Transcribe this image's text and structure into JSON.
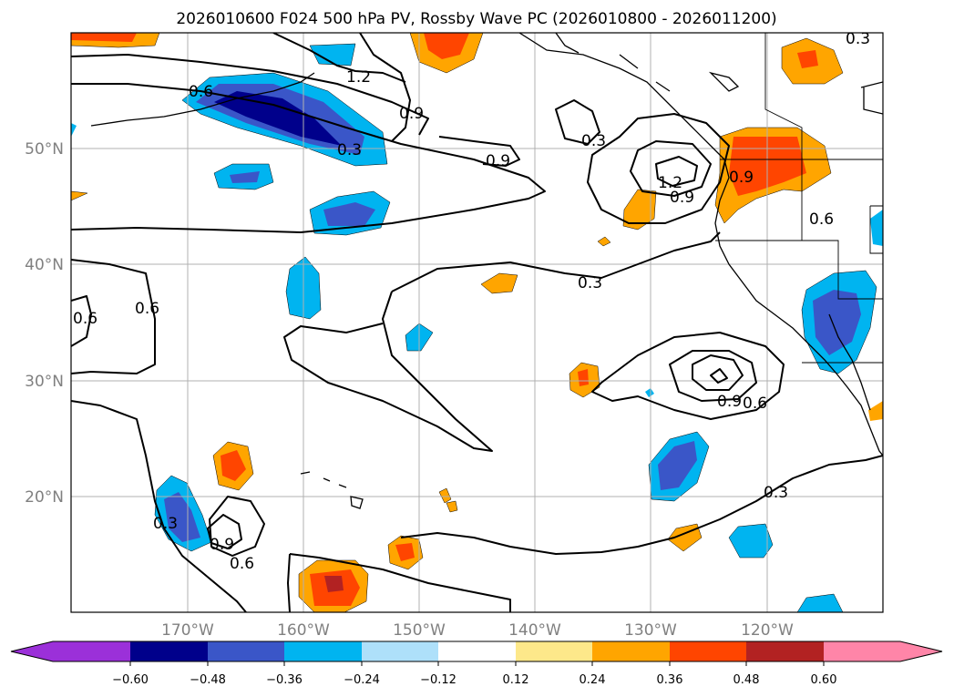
{
  "title": "2026010600 F024 500 hPa PV, Rossby Wave PC (2026010800 - 2026011200)",
  "colors": {
    "neg_060": "#9b30d9",
    "neg_048": "#00008b",
    "neg_036": "#3a56c8",
    "neg_024": "#00b4f0",
    "neg_012": "#aee0fa",
    "neutral": "#ffffff",
    "pos_012": "#fde88a",
    "pos_024": "#ffa500",
    "pos_036": "#ff4500",
    "pos_048": "#b22222",
    "pos_060": "#ff85a8"
  },
  "map": {
    "lon_labels": [
      "170°W",
      "160°W",
      "150°W",
      "140°W",
      "130°W",
      "120°W"
    ],
    "lat_labels": [
      "50°N",
      "40°N",
      "30°N",
      "20°N"
    ],
    "contour_labels": [
      "0.6",
      "0.3",
      "0.9",
      "1.2",
      "0.9",
      "0.3",
      "1.2",
      "0.9",
      "0.6",
      "0.6",
      "0.3",
      "0.3",
      "0.9",
      "0.6",
      "0.6",
      "0.9",
      "0.3",
      "0.6",
      "0.9",
      "0.3"
    ],
    "lon_range": [
      -180,
      -110
    ],
    "lat_range": [
      10,
      60
    ]
  },
  "colorbar": {
    "ticks": [
      "−0.60",
      "−0.48",
      "−0.36",
      "−0.24",
      "−0.12",
      "0.12",
      "0.24",
      "0.36",
      "0.48",
      "0.60"
    ]
  }
}
